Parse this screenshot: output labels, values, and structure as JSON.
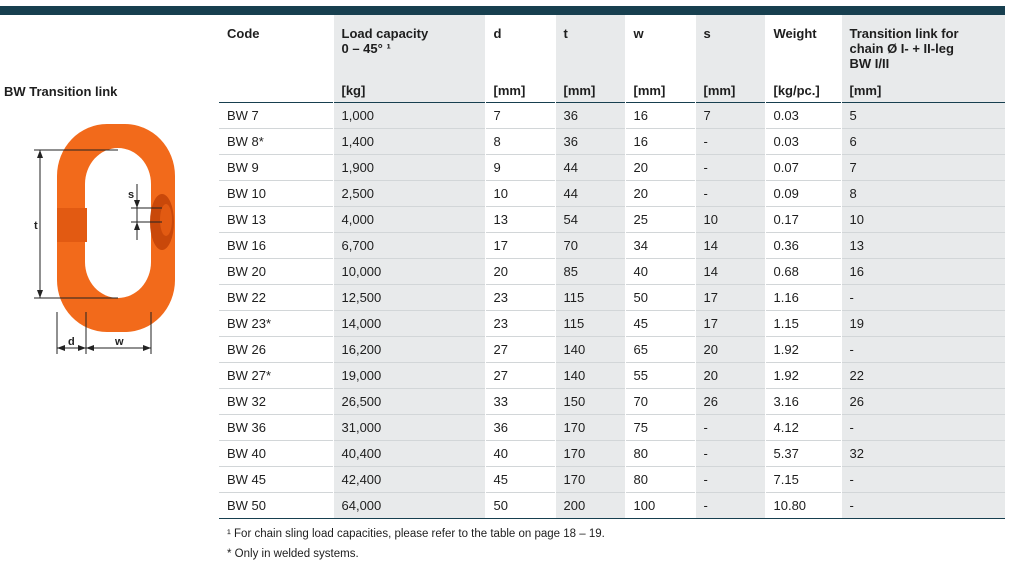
{
  "section_title": "BW Transition link",
  "diagram": {
    "labels": {
      "t": "t",
      "s": "s",
      "d": "d",
      "w": "w"
    },
    "colors": {
      "link": "#f26a1b",
      "link_dark": "#c9480a",
      "line": "#222222"
    }
  },
  "table": {
    "headers": [
      {
        "title": "Code",
        "unit": ""
      },
      {
        "title": "Load capacity",
        "title2": "0 – 45° ¹",
        "unit": "[kg]"
      },
      {
        "title": "d",
        "unit": "[mm]"
      },
      {
        "title": "t",
        "unit": "[mm]"
      },
      {
        "title": "w",
        "unit": "[mm]"
      },
      {
        "title": "s",
        "unit": "[mm]"
      },
      {
        "title": "Weight",
        "unit": "[kg/pc.]"
      },
      {
        "title": "Transition link for",
        "title2": "chain Ø I- + II-leg",
        "title3": "BW I/II",
        "unit": "[mm]"
      }
    ],
    "rows": [
      [
        "BW 7",
        "1,000",
        "7",
        "36",
        "16",
        "7",
        "0.03",
        "5"
      ],
      [
        "BW 8*",
        "1,400",
        "8",
        "36",
        "16",
        "-",
        "0.03",
        "6"
      ],
      [
        "BW 9",
        "1,900",
        "9",
        "44",
        "20",
        "-",
        "0.07",
        "7"
      ],
      [
        "BW 10",
        "2,500",
        "10",
        "44",
        "20",
        "-",
        "0.09",
        "8"
      ],
      [
        "BW 13",
        "4,000",
        "13",
        "54",
        "25",
        "10",
        "0.17",
        "10"
      ],
      [
        "BW 16",
        "6,700",
        "17",
        "70",
        "34",
        "14",
        "0.36",
        "13"
      ],
      [
        "BW 20",
        "10,000",
        "20",
        "85",
        "40",
        "14",
        "0.68",
        "16"
      ],
      [
        "BW 22",
        "12,500",
        "23",
        "115",
        "50",
        "17",
        "1.16",
        "-"
      ],
      [
        "BW 23*",
        "14,000",
        "23",
        "115",
        "45",
        "17",
        "1.15",
        "19"
      ],
      [
        "BW 26",
        "16,200",
        "27",
        "140",
        "65",
        "20",
        "1.92",
        "-"
      ],
      [
        "BW 27*",
        "19,000",
        "27",
        "140",
        "55",
        "20",
        "1.92",
        "22"
      ],
      [
        "BW 32",
        "26,500",
        "33",
        "150",
        "70",
        "26",
        "3.16",
        "26"
      ],
      [
        "BW 36",
        "31,000",
        "36",
        "170",
        "75",
        "-",
        "4.12",
        "-"
      ],
      [
        "BW 40",
        "40,400",
        "40",
        "170",
        "80",
        "-",
        "5.37",
        "32"
      ],
      [
        "BW 45",
        "42,400",
        "45",
        "170",
        "80",
        "-",
        "7.15",
        "-"
      ],
      [
        "BW 50",
        "64,000",
        "50",
        "200",
        "100",
        "-",
        "10.80",
        "-"
      ]
    ]
  },
  "footnotes": {
    "note1": "¹ For chain sling load capacities, please refer to the table on page 18 – 19.",
    "note2": "* Only in welded systems."
  },
  "colors": {
    "header_bar": "#173f4f",
    "shade": "#e8eaeb",
    "row_line": "#d2d6d8"
  }
}
